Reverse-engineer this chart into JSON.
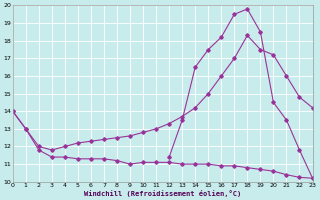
{
  "xlabel": "Windchill (Refroidissement éolien,°C)",
  "bg_color": "#c8ecec",
  "grid_color": "#ffffff",
  "line_color": "#993399",
  "xmin": 0,
  "xmax": 23,
  "ymin": 10,
  "ymax": 20,
  "curve1_x": [
    0,
    1,
    2,
    3,
    4,
    5,
    6,
    7,
    8,
    9,
    10,
    11,
    12,
    13,
    14,
    15,
    16,
    17,
    18,
    19,
    20,
    21,
    22,
    23
  ],
  "curve1_y": [
    14.0,
    13.0,
    11.8,
    11.4,
    11.4,
    11.3,
    11.3,
    11.3,
    11.2,
    11.0,
    11.1,
    11.1,
    11.1,
    11.0,
    11.0,
    11.0,
    10.9,
    10.9,
    10.8,
    10.7,
    10.6,
    10.4,
    10.25,
    10.2
  ],
  "curve2_x": [
    0,
    1,
    2,
    3,
    4,
    5,
    6,
    7,
    8,
    9,
    10,
    11,
    12,
    13,
    14,
    15,
    16,
    17,
    18,
    19,
    20,
    21,
    22,
    23
  ],
  "curve2_y": [
    14.0,
    13.0,
    12.0,
    11.8,
    12.0,
    12.2,
    12.3,
    12.4,
    12.5,
    12.6,
    12.8,
    13.0,
    13.3,
    13.7,
    14.2,
    15.0,
    16.0,
    17.0,
    18.3,
    17.5,
    17.2,
    16.0,
    14.8,
    14.2
  ],
  "curve3_x": [
    12,
    13,
    14,
    15,
    16,
    17,
    18,
    19,
    20,
    21,
    22,
    23
  ],
  "curve3_y": [
    11.4,
    13.5,
    16.5,
    17.5,
    18.2,
    19.5,
    19.8,
    18.5,
    14.5,
    13.5,
    11.8,
    10.2
  ]
}
